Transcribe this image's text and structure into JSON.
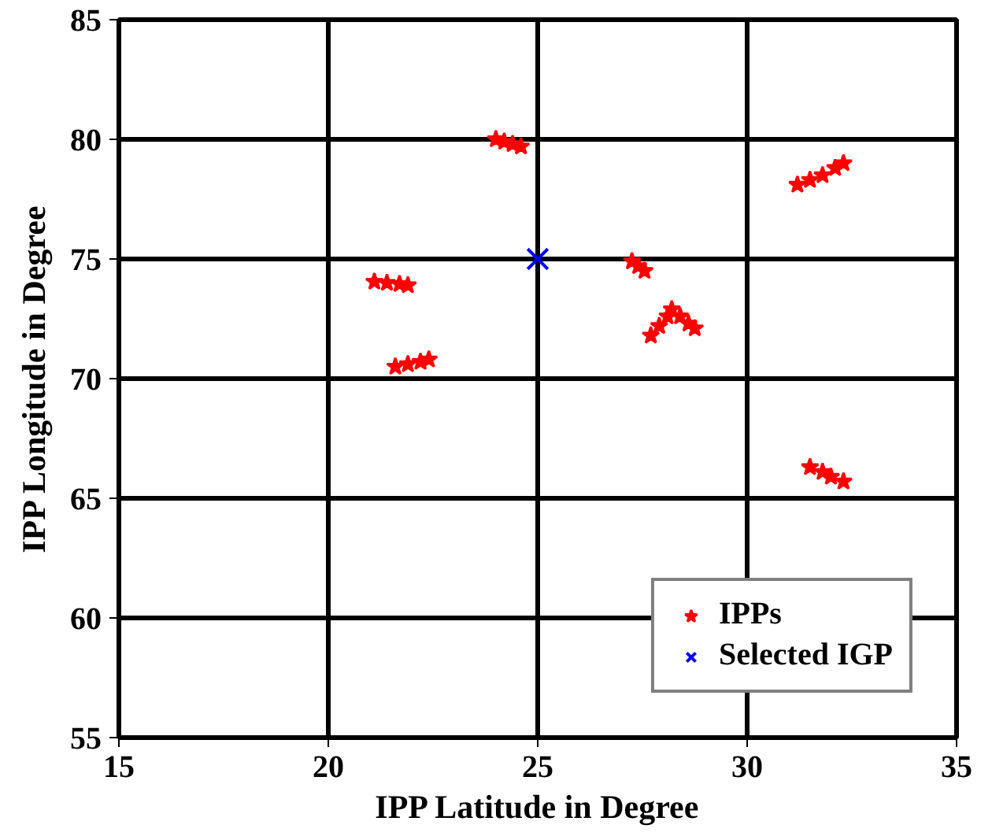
{
  "chart_data": {
    "type": "scatter",
    "xlabel": "IPP Latitude in Degree",
    "ylabel": "IPP Longitude in Degree",
    "xlim": [
      15,
      35
    ],
    "ylim": [
      55,
      85
    ],
    "xticks": [
      15,
      20,
      25,
      30,
      35
    ],
    "yticks": [
      55,
      60,
      65,
      70,
      75,
      80,
      85
    ],
    "grid": true,
    "legend": "bottom right",
    "series": [
      {
        "name": "IPPs",
        "color": "#ff0000",
        "marker": "star",
        "x": [
          24.0,
          24.2,
          24.4,
          24.6,
          21.1,
          21.4,
          21.7,
          21.9,
          21.6,
          21.9,
          22.2,
          22.4,
          27.25,
          27.4,
          27.55,
          27.7,
          27.9,
          28.1,
          28.2,
          28.4,
          28.6,
          28.75,
          31.2,
          31.5,
          31.8,
          32.1,
          32.3,
          31.5,
          31.8,
          32.0,
          32.3
        ],
        "values": [
          80.0,
          79.9,
          79.8,
          79.7,
          74.05,
          74.0,
          73.95,
          73.9,
          70.5,
          70.6,
          70.7,
          70.8,
          74.9,
          74.7,
          74.5,
          71.8,
          72.2,
          72.6,
          72.9,
          72.6,
          72.3,
          72.1,
          78.1,
          78.3,
          78.5,
          78.8,
          79.0,
          66.3,
          66.1,
          65.9,
          65.7
        ]
      },
      {
        "name": "Selected IGP",
        "color": "#0000ff",
        "marker": "cross",
        "x": [
          25
        ],
        "values": [
          75
        ]
      }
    ]
  }
}
